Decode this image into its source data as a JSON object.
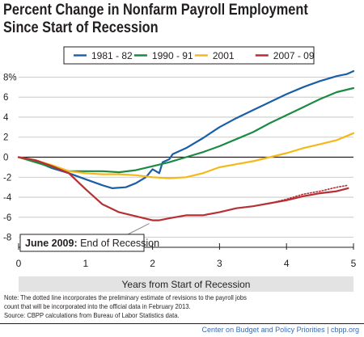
{
  "title_lines": [
    "Percent Change in Nonfarm Payroll Employment",
    "Since Start of Recession"
  ],
  "note_lines": [
    "Note: The dotted line incorporates the preliminary estimate of revisions to the payroll jobs",
    "count that will be incorporated into the official data in February 2013.",
    "Source: CBPP calculations from Bureau of Labor Statistics data."
  ],
  "credit": "Center on Budget and Policy Priorities | cbpp.org",
  "colors": {
    "axis": "#231f20",
    "grid": "#bdbdbd",
    "xlabel_bg": "#e3e3e3"
  },
  "chart_data": {
    "type": "line",
    "title": "Percent Change in Nonfarm Payroll Employment Since Start of Recession",
    "xlabel": "Years from Start of Recession",
    "ylabel": "",
    "xlim": [
      0,
      5
    ],
    "ylim": [
      -9,
      9
    ],
    "x_ticks": [
      0,
      1,
      2,
      3,
      4,
      5
    ],
    "x_tick_labels": [
      "0",
      "1",
      "2",
      "3",
      "4",
      "5"
    ],
    "y_ticks": [
      8,
      6,
      4,
      2,
      0,
      -2,
      -4,
      -6,
      -8
    ],
    "y_tick_labels": [
      "8%",
      "6",
      "4",
      "2",
      "0",
      "-2",
      "-4",
      "-6",
      "-8"
    ],
    "grid": "horizontal",
    "legend_position": "top",
    "series": [
      {
        "name": "1981 - 82",
        "color": "#1a5ea7",
        "dotted": false,
        "x": [
          0,
          0.25,
          0.5,
          0.75,
          1.0,
          1.25,
          1.4,
          1.6,
          1.75,
          1.9,
          2.0,
          2.05,
          2.1,
          2.15,
          2.25,
          2.3,
          2.5,
          2.75,
          3.0,
          3.25,
          3.5,
          3.75,
          4.0,
          4.25,
          4.5,
          4.75,
          4.9,
          5.0
        ],
        "y": [
          0,
          -0.4,
          -1.1,
          -1.6,
          -2.2,
          -2.8,
          -3.1,
          -3.0,
          -2.6,
          -2.0,
          -1.2,
          -1.4,
          -1.6,
          -0.5,
          -0.2,
          0.3,
          0.9,
          1.9,
          3.0,
          3.9,
          4.7,
          5.5,
          6.3,
          7.0,
          7.6,
          8.1,
          8.3,
          8.6
        ]
      },
      {
        "name": "1990 - 91",
        "color": "#1c8a44",
        "dotted": false,
        "x": [
          0,
          0.25,
          0.5,
          0.75,
          1.0,
          1.25,
          1.5,
          1.75,
          2.0,
          2.25,
          2.5,
          2.75,
          3.0,
          3.25,
          3.5,
          3.75,
          4.0,
          4.25,
          4.5,
          4.75,
          5.0
        ],
        "y": [
          0,
          -0.5,
          -1.0,
          -1.4,
          -1.4,
          -1.4,
          -1.5,
          -1.3,
          -0.9,
          -0.5,
          0.0,
          0.5,
          1.1,
          1.8,
          2.5,
          3.4,
          4.2,
          5.0,
          5.8,
          6.5,
          6.9
        ]
      },
      {
        "name": "2001",
        "color": "#f5b818",
        "dotted": false,
        "x": [
          0,
          0.25,
          0.5,
          0.75,
          1.0,
          1.25,
          1.5,
          1.75,
          2.0,
          2.25,
          2.5,
          2.75,
          3.0,
          3.25,
          3.5,
          3.75,
          4.0,
          4.25,
          4.5,
          4.75,
          5.0
        ],
        "y": [
          0,
          -0.3,
          -0.8,
          -1.4,
          -1.6,
          -1.7,
          -1.7,
          -1.8,
          -2.0,
          -2.1,
          -2.0,
          -1.6,
          -1.0,
          -0.7,
          -0.4,
          0.0,
          0.4,
          0.9,
          1.3,
          1.7,
          2.4
        ]
      },
      {
        "name": "2007 - 09",
        "color": "#b72f33",
        "dotted": false,
        "x": [
          0,
          0.25,
          0.5,
          0.75,
          1.0,
          1.25,
          1.5,
          1.75,
          2.0,
          2.1,
          2.25,
          2.5,
          2.75,
          3.0,
          3.25,
          3.5,
          3.75,
          4.0,
          4.25,
          4.5,
          4.75,
          4.92
        ],
        "y": [
          0,
          -0.3,
          -0.9,
          -1.6,
          -3.2,
          -4.7,
          -5.5,
          -5.9,
          -6.3,
          -6.3,
          -6.1,
          -5.8,
          -5.8,
          -5.5,
          -5.1,
          -4.9,
          -4.6,
          -4.3,
          -3.9,
          -3.6,
          -3.4,
          -3.1
        ]
      },
      {
        "name": "",
        "color": "#b72f33",
        "dotted": true,
        "x": [
          3.75,
          4.0,
          4.25,
          4.5,
          4.75,
          4.92
        ],
        "y": [
          -4.6,
          -4.2,
          -3.7,
          -3.4,
          -3.0,
          -2.8
        ]
      }
    ],
    "annotation": {
      "bold_text": "June 2009:",
      "text": "End of Recession",
      "x": 2.0,
      "y": -6.3
    }
  }
}
